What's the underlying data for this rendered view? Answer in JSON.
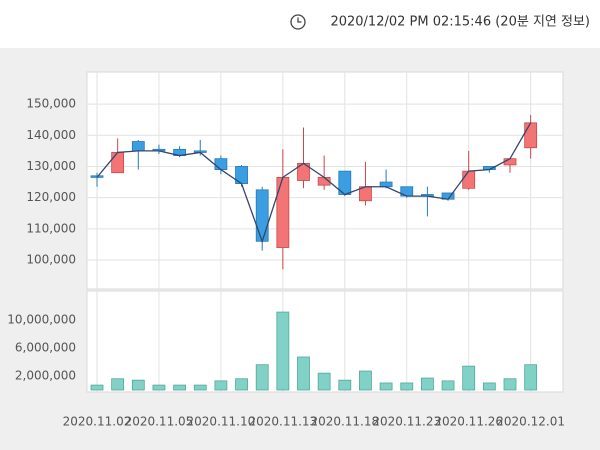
{
  "header": {
    "timestamp": "2020/12/02 PM 02:15:46 (20분 지연 정보)"
  },
  "chart_data": [
    {
      "type": "candlestick",
      "open": [
        127000,
        128000,
        138000,
        135500,
        135500,
        135000,
        132500,
        130000,
        122500,
        104000,
        125500,
        124000,
        128500,
        119000,
        125000,
        123500,
        121000,
        121500,
        123000,
        130000,
        130500,
        136000
      ],
      "high": [
        128000,
        139000,
        138500,
        137000,
        136500,
        138500,
        133500,
        130500,
        123500,
        135500,
        142500,
        133500,
        128500,
        131500,
        129000,
        123500,
        123500,
        121500,
        135000,
        130000,
        132500,
        146500
      ],
      "low": [
        123500,
        128000,
        129000,
        134000,
        133000,
        133500,
        127500,
        123500,
        103000,
        97000,
        123000,
        122500,
        120500,
        117500,
        123000,
        120000,
        114000,
        119000,
        122500,
        128000,
        128000,
        132500
      ],
      "close": [
        126500,
        134500,
        135000,
        135000,
        133500,
        134500,
        129000,
        124500,
        106000,
        126500,
        131000,
        126500,
        121000,
        123500,
        123500,
        120500,
        120500,
        119500,
        128500,
        129000,
        132500,
        144000
      ],
      "up_color": "#f27474",
      "down_color": "#3a9ee0",
      "line_color": "#34466e",
      "ylim": [
        90700,
        160300
      ],
      "yticks": [
        {
          "value": 100000,
          "label": "100,000"
        },
        {
          "value": 110000,
          "label": "110,000"
        },
        {
          "value": 120000,
          "label": "120,000"
        },
        {
          "value": 130000,
          "label": "130,000"
        },
        {
          "value": 140000,
          "label": "140,000"
        },
        {
          "value": 150000,
          "label": "150,000"
        }
      ],
      "grid": true
    },
    {
      "type": "bar",
      "categories": [
        "2020.11.02",
        null,
        null,
        "2020.11.05",
        null,
        null,
        "2020.11.10",
        null,
        null,
        "2020.11.13",
        null,
        null,
        "2020.11.18",
        null,
        null,
        "2020.11.23",
        null,
        null,
        "2020.11.26",
        null,
        null,
        "2020.12.01"
      ],
      "values": [
        700000,
        1600000,
        1400000,
        700000,
        700000,
        700000,
        1300000,
        1600000,
        3600000,
        11100000,
        4700000,
        2400000,
        1400000,
        2700000,
        1000000,
        1000000,
        1700000,
        1300000,
        3400000,
        1000000,
        1600000,
        3600000
      ],
      "color": "#82d1c6",
      "ylim": [
        0,
        14100000
      ],
      "yticks": [
        {
          "value": 2000000,
          "label": "2,000,000"
        },
        {
          "value": 6000000,
          "label": "6,000,000"
        },
        {
          "value": 10000000,
          "label": "10,000,000"
        }
      ],
      "grid": false
    }
  ]
}
